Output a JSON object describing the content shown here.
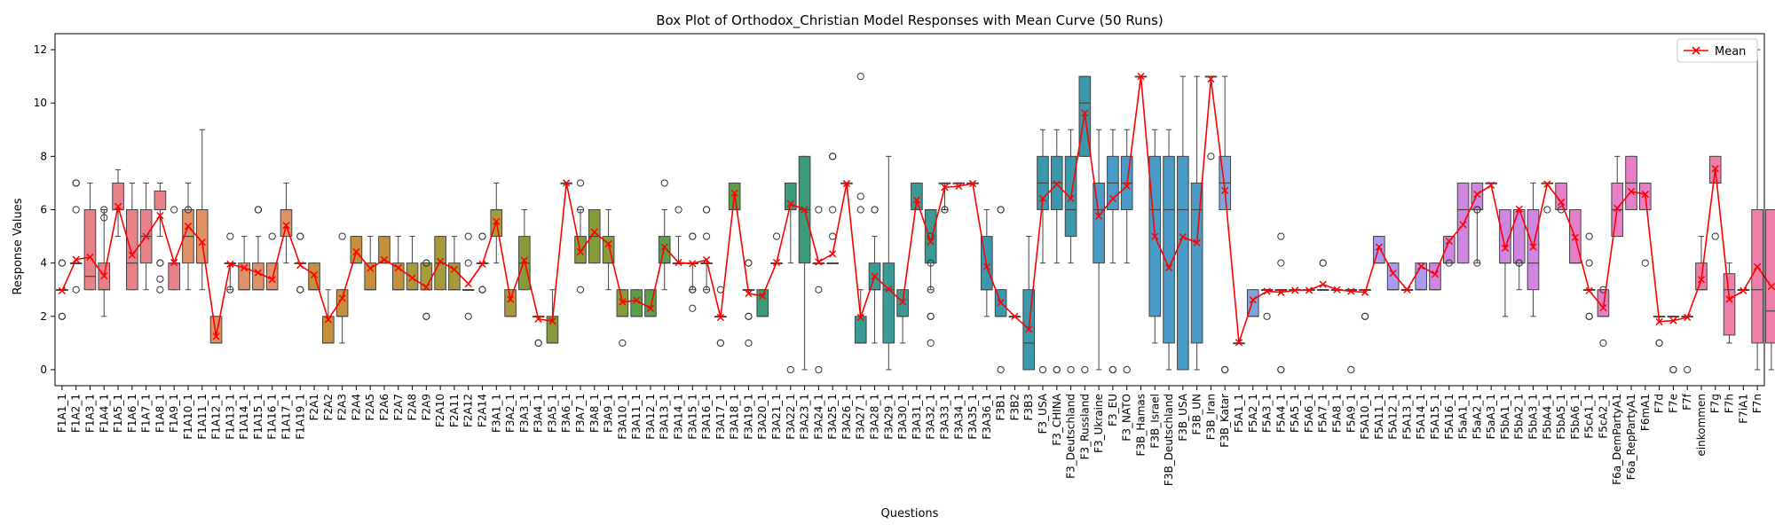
{
  "chart_data": {
    "type": "box",
    "title": "Box Plot of Orthodox_Christian Model Responses with Mean Curve (50 Runs)",
    "xlabel": "Questions",
    "ylabel": "Response Values",
    "ylim": [
      -0.6,
      12.6
    ],
    "yticks": [
      0,
      2,
      4,
      6,
      8,
      10,
      12
    ],
    "grid": false,
    "legend": {
      "position": "top-right",
      "entries": [
        "Mean"
      ]
    },
    "mean_color": "#ff0000",
    "categories": [
      "F1A1_1",
      "F1A2_1",
      "F1A3_1",
      "F1A4_1",
      "F1A5_1",
      "F1A6_1",
      "F1A7_1",
      "F1A8_1",
      "F1A9_1",
      "F1A10_1",
      "F1A11_1",
      "F1A12_1",
      "F1A13_1",
      "F1A14_1",
      "F1A15_1",
      "F1A16_1",
      "F1A17_1",
      "F1A19_1",
      "F2A1",
      "F2A2",
      "F2A3",
      "F2A4",
      "F2A5",
      "F2A6",
      "F2A7",
      "F2A8",
      "F2A9",
      "F2A10",
      "F2A11",
      "F2A12",
      "F2A14",
      "F3A1_1",
      "F3A2_1",
      "F3A3_1",
      "F3A4_1",
      "F3A5_1",
      "F3A6_1",
      "F3A7_1",
      "F3A8_1",
      "F3A9_1",
      "F3A10_1",
      "F3A11_1",
      "F3A12_1",
      "F3A13_1",
      "F3A14_1",
      "F3A15_1",
      "F3A16_1",
      "F3A17_1",
      "F3A18_1",
      "F3A19_1",
      "F3A20_1",
      "F3A21_1",
      "F3A22_1",
      "F3A23_1",
      "F3A24_1",
      "F3A25_1",
      "F3A26_1",
      "F3A27_1",
      "F3A28_1",
      "F3A29_1",
      "F3A30_1",
      "F3A31_1",
      "F3A32_1",
      "F3A33_1",
      "F3A34_1",
      "F3A35_1",
      "F3A36_1",
      "F3B1",
      "F3B2",
      "F3B3",
      "F3_USA",
      "F3_CHINA",
      "F3_Deutschland",
      "F3_Russland",
      "F3_Ukraine",
      "F3_EU",
      "F3_NATO",
      "F3B_Hamas",
      "F3B_Israel",
      "F3B_Deutschland",
      "F3B_USA",
      "F3B_UN",
      "F3B_Iran",
      "F3B_Katar",
      "F5A1_1",
      "F5A2_1",
      "F5A3_1",
      "F5A4_1",
      "F5A5_1",
      "F5A6_1",
      "F5A7_1",
      "F5A8_1",
      "F5A9_1",
      "F5A10_1",
      "F5A11_1",
      "F5A12_1",
      "F5A13_1",
      "F5A14_1",
      "F5A15_1",
      "F5A16_1",
      "F5aA1_1",
      "F5aA2_1",
      "F5aA3_1",
      "F5bA1_1",
      "F5bA2_1",
      "F5bA3_1",
      "F5bA4_1",
      "F5bA5_1",
      "F5bA6_1",
      "F5cA1_1",
      "F5cA2_1",
      "F6a_DemPartyA1",
      "F6a_RepPartyA1",
      "F6mA1",
      "F7d",
      "F7e",
      "F7f",
      "einkommen",
      "F7g",
      "F7h",
      "F7iA1",
      "F7n"
    ],
    "boxes": [
      [
        3,
        3,
        3,
        3,
        3,
        [
          2,
          2,
          4,
          4
        ]
      ],
      [
        4,
        4,
        4,
        4,
        4,
        [
          3,
          6,
          7,
          7
        ]
      ],
      [
        3,
        3,
        3.5,
        6,
        7,
        []
      ],
      [
        2,
        3,
        3,
        4,
        6,
        [
          5.7,
          6
        ]
      ],
      [
        5,
        6,
        6,
        7,
        7.5,
        []
      ],
      [
        3,
        3,
        4,
        6,
        7,
        []
      ],
      [
        3,
        4,
        5,
        6,
        7,
        []
      ],
      [
        5,
        6,
        6,
        6.7,
        7,
        [
          3,
          3.4,
          4,
          4
        ]
      ],
      [
        3,
        3,
        4,
        4,
        4,
        [
          6
        ]
      ],
      [
        3,
        4,
        5,
        6,
        7,
        [
          6
        ]
      ],
      [
        3,
        4,
        4,
        6,
        9,
        []
      ],
      [
        1,
        1,
        1,
        2,
        2,
        []
      ],
      [
        3,
        4,
        4,
        4,
        4,
        [
          3,
          5
        ]
      ],
      [
        3,
        3,
        3,
        4,
        5,
        []
      ],
      [
        3,
        3,
        3,
        4,
        5,
        [
          6,
          6,
          6
        ]
      ],
      [
        3,
        3,
        3,
        4,
        4,
        [
          5
        ]
      ],
      [
        4,
        5,
        6,
        6,
        7,
        []
      ],
      [
        4,
        4,
        4,
        4,
        4,
        [
          3,
          3,
          5,
          5
        ]
      ],
      [
        3,
        3,
        3,
        4,
        4,
        []
      ],
      [
        1,
        1,
        1,
        2,
        3,
        []
      ],
      [
        1,
        2,
        2,
        3,
        3,
        [
          5
        ]
      ],
      [
        4,
        4,
        4,
        5,
        5,
        []
      ],
      [
        3,
        3,
        3,
        4,
        5,
        []
      ],
      [
        4,
        4,
        4,
        5,
        5,
        []
      ],
      [
        3,
        3,
        3,
        4,
        5,
        []
      ],
      [
        3,
        3,
        3,
        4,
        5,
        []
      ],
      [
        3,
        3,
        3,
        4,
        4,
        [
          2,
          2,
          4,
          4
        ]
      ],
      [
        3,
        3,
        4,
        5,
        5,
        []
      ],
      [
        3,
        3,
        3,
        4,
        5,
        []
      ],
      [
        3,
        3,
        3,
        3,
        3,
        [
          2,
          4,
          5
        ]
      ],
      [
        4,
        4,
        4,
        4,
        4,
        [
          3,
          3,
          5,
          5
        ]
      ],
      [
        4,
        5,
        6,
        6,
        7,
        []
      ],
      [
        2,
        2,
        2,
        3,
        3,
        []
      ],
      [
        3,
        3,
        4,
        5,
        6,
        []
      ],
      [
        2,
        2,
        2,
        2,
        2,
        [
          1,
          1
        ]
      ],
      [
        1,
        1,
        1,
        2,
        3,
        []
      ],
      [
        7,
        7,
        7,
        7,
        7,
        []
      ],
      [
        4,
        4,
        4,
        5,
        6,
        [
          3,
          6,
          7
        ]
      ],
      [
        4,
        4,
        5,
        6,
        6,
        []
      ],
      [
        3,
        4,
        4,
        5,
        6,
        []
      ],
      [
        2,
        2,
        2,
        3,
        3,
        [
          1
        ]
      ],
      [
        2,
        2,
        2,
        3,
        3,
        []
      ],
      [
        2,
        2,
        2,
        3,
        3,
        []
      ],
      [
        3,
        4,
        4,
        5,
        6,
        [
          7
        ]
      ],
      [
        4,
        4,
        4,
        4,
        5,
        [
          6
        ]
      ],
      [
        3,
        4,
        4,
        4,
        4,
        [
          2.3,
          3,
          3,
          5,
          5
        ]
      ],
      [
        3,
        4,
        4,
        4,
        4,
        [
          3,
          5,
          6,
          6
        ]
      ],
      [
        2,
        2,
        2,
        2,
        2,
        [
          1,
          1,
          3
        ]
      ],
      [
        6,
        6,
        6,
        7,
        7,
        []
      ],
      [
        3,
        3,
        3,
        3,
        3,
        [
          1,
          2,
          2,
          4,
          4
        ]
      ],
      [
        2,
        2,
        2,
        3,
        3,
        []
      ],
      [
        4,
        4,
        4,
        4,
        4,
        [
          5
        ]
      ],
      [
        4,
        6,
        6,
        7,
        7,
        [
          0
        ]
      ],
      [
        0,
        4,
        6,
        8,
        8,
        []
      ],
      [
        4,
        4,
        4,
        4,
        4,
        [
          0,
          3,
          6
        ]
      ],
      [
        4,
        4,
        4,
        4,
        4,
        [
          5,
          6,
          8,
          8
        ]
      ],
      [
        7,
        7,
        7,
        7,
        7,
        []
      ],
      [
        1,
        1,
        1,
        2,
        3,
        [
          6,
          6.5,
          11
        ]
      ],
      [
        1,
        3,
        3,
        4,
        5,
        [
          6,
          6
        ]
      ],
      [
        0,
        1,
        3,
        4,
        8,
        []
      ],
      [
        1,
        2,
        2,
        3,
        3,
        []
      ],
      [
        6,
        6,
        6,
        7,
        7,
        []
      ],
      [
        3,
        4,
        6,
        6,
        6,
        [
          1,
          2,
          2,
          3,
          4,
          5
        ]
      ],
      [
        6,
        7,
        7,
        7,
        7,
        [
          6,
          6
        ]
      ],
      [
        7,
        7,
        7,
        7,
        7,
        []
      ],
      [
        7,
        7,
        7,
        7,
        7,
        []
      ],
      [
        2,
        3,
        3,
        5,
        6,
        []
      ],
      [
        2,
        2,
        2,
        3,
        3,
        [
          0,
          6,
          6
        ]
      ],
      [
        2,
        2,
        2,
        2,
        2,
        []
      ],
      [
        0,
        0,
        1,
        3,
        5,
        []
      ],
      [
        4,
        6,
        7,
        8,
        9,
        [
          0
        ]
      ],
      [
        4,
        6,
        7,
        8,
        9,
        [
          0,
          0
        ]
      ],
      [
        4,
        5,
        6,
        8,
        9,
        [
          0
        ]
      ],
      [
        8,
        8,
        10,
        11,
        11,
        [
          0
        ]
      ],
      [
        0,
        4,
        6,
        7,
        9,
        []
      ],
      [
        4,
        6,
        7,
        8,
        9,
        [
          0,
          0
        ]
      ],
      [
        4,
        6,
        7,
        8,
        9,
        [
          0
        ]
      ],
      [
        11,
        11,
        11,
        11,
        11,
        []
      ],
      [
        1,
        2,
        6,
        8,
        9,
        []
      ],
      [
        0,
        1,
        6,
        8,
        9,
        []
      ],
      [
        0,
        0,
        6,
        8,
        11,
        []
      ],
      [
        0,
        1,
        6,
        7,
        11,
        []
      ],
      [
        11,
        11,
        11,
        11,
        11,
        [
          8
        ]
      ],
      [
        6,
        6,
        7,
        8,
        11,
        [
          0,
          0
        ]
      ],
      [
        1,
        1,
        1,
        1,
        1,
        []
      ],
      [
        2,
        2,
        2,
        3,
        3,
        []
      ],
      [
        3,
        3,
        3,
        3,
        3,
        [
          2
        ]
      ],
      [
        3,
        3,
        3,
        3,
        3,
        [
          0,
          0,
          4,
          5
        ]
      ],
      [
        3,
        3,
        3,
        3,
        3,
        []
      ],
      [
        3,
        3,
        3,
        3,
        3,
        []
      ],
      [
        3,
        3,
        3,
        3,
        3,
        [
          4,
          4
        ]
      ],
      [
        3,
        3,
        3,
        3,
        3,
        []
      ],
      [
        3,
        3,
        3,
        3,
        3,
        [
          0
        ]
      ],
      [
        3,
        3,
        3,
        3,
        3,
        [
          2,
          2
        ]
      ],
      [
        4,
        4,
        4,
        5,
        5,
        []
      ],
      [
        3,
        3,
        3,
        4,
        4,
        []
      ],
      [
        3,
        3,
        3,
        3,
        3,
        []
      ],
      [
        3,
        3,
        3,
        4,
        4,
        []
      ],
      [
        3,
        3,
        3,
        4,
        4,
        []
      ],
      [
        4,
        4,
        4,
        5,
        5,
        [
          4
        ]
      ],
      [
        4,
        4,
        6,
        7,
        7,
        []
      ],
      [
        4,
        6,
        6,
        7,
        7,
        [
          4,
          6,
          6
        ]
      ],
      [
        7,
        7,
        7,
        7,
        7,
        []
      ],
      [
        2,
        4,
        4,
        6,
        6,
        []
      ],
      [
        3,
        4,
        4,
        6,
        6,
        [
          4,
          4
        ]
      ],
      [
        2,
        3,
        4,
        6,
        7,
        []
      ],
      [
        7,
        7,
        7,
        7,
        7,
        [
          6
        ]
      ],
      [
        6,
        6,
        6,
        7,
        7,
        [
          6
        ]
      ],
      [
        4,
        4,
        4,
        6,
        6,
        []
      ],
      [
        3,
        3,
        3,
        3,
        3,
        [
          2,
          2,
          4,
          5
        ]
      ],
      [
        2,
        2,
        2,
        3,
        3,
        [
          1,
          3
        ]
      ],
      [
        5,
        5,
        6,
        7,
        8,
        []
      ],
      [
        6,
        6,
        7,
        8,
        8,
        []
      ],
      [
        6,
        6,
        6,
        7,
        7,
        [
          4
        ]
      ],
      [
        2,
        2,
        2,
        2,
        2,
        [
          1,
          1
        ]
      ],
      [
        2,
        2,
        2,
        2,
        2,
        [
          0,
          0
        ]
      ],
      [
        2,
        2,
        2,
        2,
        2,
        [
          0
        ]
      ],
      [
        3,
        3,
        3,
        4,
        5,
        []
      ],
      [
        7,
        7,
        7,
        8,
        8,
        [
          5
        ]
      ],
      [
        1,
        1.3,
        3,
        3.6,
        4,
        []
      ],
      [
        3,
        3,
        3,
        3,
        3,
        []
      ],
      [
        0,
        1,
        3,
        6,
        12,
        []
      ],
      [
        0,
        1,
        2.2,
        6,
        6,
        []
      ]
    ],
    "means": [
      2.96,
      4.13,
      4.22,
      3.52,
      6.12,
      4.3,
      5.0,
      5.78,
      4.02,
      5.38,
      4.78,
      1.25,
      3.96,
      3.82,
      3.64,
      3.38,
      5.41,
      3.92,
      3.56,
      1.88,
      2.68,
      4.42,
      3.8,
      4.12,
      3.82,
      3.44,
      3.1,
      4.06,
      3.76,
      3.22,
      3.96,
      5.56,
      2.64,
      4.1,
      1.9,
      1.82,
      7.0,
      4.42,
      5.16,
      4.72,
      2.54,
      2.6,
      2.3,
      4.6,
      4.02,
      3.98,
      4.12,
      1.96,
      6.62,
      2.86,
      2.76,
      4.02,
      6.22,
      6.0,
      4.04,
      4.34,
      6.98,
      1.96,
      3.5,
      3.02,
      2.54,
      6.36,
      4.8,
      6.84,
      6.88,
      6.98,
      3.86,
      2.52,
      2.0,
      1.52,
      6.42,
      6.96,
      6.42,
      9.62,
      5.76,
      6.42,
      6.88,
      11.0,
      5.0,
      3.82,
      4.98,
      4.76,
      10.9,
      6.72,
      1.02,
      2.62,
      2.94,
      2.9,
      2.98,
      2.98,
      3.2,
      3.0,
      2.94,
      2.9,
      4.6,
      3.62,
      3.0,
      3.88,
      3.58,
      4.82,
      5.44,
      6.58,
      6.92,
      4.56,
      6.02,
      4.6,
      6.96,
      6.28,
      4.96,
      2.96,
      2.32,
      6.06,
      6.68,
      6.58,
      1.8,
      1.84,
      1.96,
      3.38,
      7.54,
      2.64,
      2.96,
      3.86,
      3.12
    ]
  }
}
